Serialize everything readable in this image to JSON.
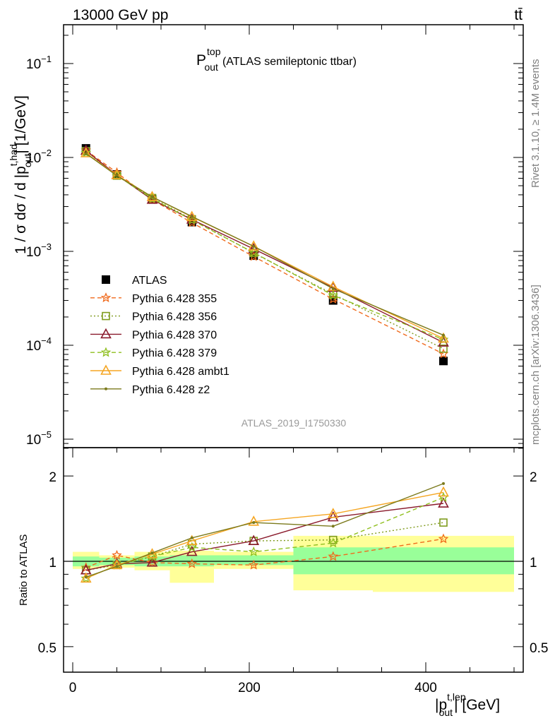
{
  "header": {
    "energy": "13000 GeV pp",
    "process": "tt̄"
  },
  "main_title": {
    "symbol": "P",
    "sup": "top",
    "sub": "out",
    "rest": "(ATLAS semileptonic ttbar)"
  },
  "side_labels": {
    "rivet": "Rivet 3.1.10, ≥ 1.4M events",
    "mcplots": "mcplots.cern.ch [arXiv:1306.3436]"
  },
  "analysis_tag": "ATLAS_2019_I1750330",
  "axes": {
    "ylabel_main": {
      "pre": "1 / σ dσ / d |p",
      "sup": "t,had",
      "sub": "out",
      "post": "| [1/GeV]"
    },
    "ylabel_ratio": "Ratio to ATLAS",
    "xlabel": {
      "pre": "|p",
      "sup": "t,lep",
      "sub": "out",
      "post": "| [GeV]"
    },
    "x_ticks": [
      "0",
      "200",
      "400"
    ],
    "y_ticks_main": [
      {
        "base": "10",
        "exp": "−1"
      },
      {
        "base": "10",
        "exp": "−2"
      },
      {
        "base": "10",
        "exp": "−3"
      },
      {
        "base": "10",
        "exp": "−4"
      },
      {
        "base": "10",
        "exp": "−5"
      }
    ],
    "y_ticks_ratio": [
      "2",
      "1",
      "0.5"
    ]
  },
  "legend": [
    {
      "label": "ATLAS"
    },
    {
      "label": "Pythia 6.428 355"
    },
    {
      "label": "Pythia 6.428 356"
    },
    {
      "label": "Pythia 6.428 370"
    },
    {
      "label": "Pythia 6.428 379"
    },
    {
      "label": "Pythia 6.428 ambt1"
    },
    {
      "label": "Pythia 6.428 z2"
    }
  ],
  "chart_data": [
    {
      "type": "line",
      "scale": "log",
      "xlim": [
        -20,
        510
      ],
      "ylim": [
        7.5e-06,
        0.28
      ],
      "x": [
        15,
        50,
        90,
        135,
        205,
        295,
        420
      ],
      "bin_edges": [
        0,
        30,
        70,
        110,
        160,
        250,
        340,
        500
      ],
      "series": [
        {
          "name": "ATLAS",
          "color": "#000000",
          "marker": "square",
          "dash": "none",
          "values": [
            0.0125,
            0.0066,
            0.0036,
            0.00205,
            0.0009,
            0.0003,
            6.8e-05
          ]
        },
        {
          "name": "Pythia 6.428 355",
          "color": "#f06a1c",
          "marker": "star",
          "dash": "dashed",
          "values": [
            0.0119,
            0.0069,
            0.00355,
            0.00202,
            0.00088,
            0.00031,
            8.1e-05
          ]
        },
        {
          "name": "Pythia 6.428 356",
          "color": "#7f9b1d",
          "marker": "open-square",
          "dash": "dotted",
          "values": [
            0.0117,
            0.0064,
            0.0037,
            0.0022,
            0.00096,
            0.00035,
            9.2e-05
          ]
        },
        {
          "name": "Pythia 6.428 370",
          "color": "#8a1a2c",
          "marker": "open-triangle",
          "dash": "solid",
          "values": [
            0.0118,
            0.0065,
            0.00355,
            0.00218,
            0.00106,
            0.00041,
            0.000107
          ]
        },
        {
          "name": "Pythia 6.428 379",
          "color": "#8fbf1e",
          "marker": "star",
          "dash": "dashed",
          "values": [
            0.0112,
            0.0064,
            0.00365,
            0.00215,
            0.00097,
            0.00034,
            0.000115
          ]
        },
        {
          "name": "Pythia 6.428 ambt1",
          "color": "#f5a623",
          "marker": "open-triangle",
          "dash": "solid",
          "values": [
            0.0111,
            0.0065,
            0.0038,
            0.00233,
            0.00113,
            0.00042,
            0.000118
          ]
        },
        {
          "name": "Pythia 6.428 z2",
          "color": "#7b7a1c",
          "marker": "dot",
          "dash": "solid",
          "values": [
            0.011,
            0.0064,
            0.0038,
            0.00235,
            0.00113,
            0.0004,
            0.000128
          ]
        }
      ]
    },
    {
      "type": "line",
      "scale": "log",
      "title": "Ratio to ATLAS",
      "xlim": [
        -20,
        510
      ],
      "ylim": [
        0.4,
        2.4
      ],
      "x": [
        15,
        50,
        90,
        135,
        205,
        295,
        420
      ],
      "bands": {
        "bin_edges": [
          0,
          30,
          70,
          110,
          160,
          250,
          340,
          500
        ],
        "inner": [
          [
            0.96,
            1.04
          ],
          [
            0.97,
            1.03
          ],
          [
            0.96,
            1.04
          ],
          [
            0.96,
            1.05
          ],
          [
            0.97,
            1.05
          ],
          [
            0.9,
            1.12
          ],
          [
            0.9,
            1.12
          ]
        ],
        "outer": [
          [
            0.94,
            1.08
          ],
          [
            0.95,
            1.05
          ],
          [
            0.93,
            1.08
          ],
          [
            0.84,
            1.09
          ],
          [
            0.94,
            1.08
          ],
          [
            0.79,
            1.23
          ],
          [
            0.78,
            1.23
          ]
        ],
        "inner_color": "#99ff99",
        "outer_color": "#ffff99"
      },
      "series": [
        {
          "name": "Pythia 6.428 355",
          "values": [
            0.95,
            1.05,
            0.99,
            0.98,
            0.97,
            1.04,
            1.2
          ]
        },
        {
          "name": "Pythia 6.428 356",
          "values": [
            0.93,
            0.97,
            1.04,
            1.15,
            1.18,
            1.19,
            1.37
          ]
        },
        {
          "name": "Pythia 6.428 370",
          "values": [
            0.93,
            0.98,
            0.99,
            1.08,
            1.18,
            1.43,
            1.6
          ]
        },
        {
          "name": "Pythia 6.428 379",
          "values": [
            0.87,
            0.97,
            1.04,
            1.12,
            1.08,
            1.16,
            1.68
          ]
        },
        {
          "name": "Pythia 6.428 ambt1",
          "values": [
            0.87,
            0.97,
            1.06,
            1.18,
            1.38,
            1.47,
            1.75
          ]
        },
        {
          "name": "Pythia 6.428 z2",
          "values": [
            0.88,
            0.96,
            1.07,
            1.21,
            1.37,
            1.33,
            1.88
          ]
        }
      ]
    }
  ]
}
